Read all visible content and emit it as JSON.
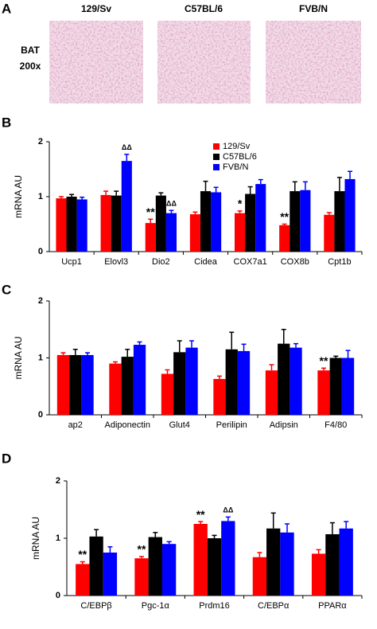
{
  "panel_a": {
    "panel": "A",
    "columns": [
      "129/Sv",
      "C57BL/6",
      "FVB/N"
    ],
    "row_label": "BAT",
    "magnification": "200x"
  },
  "chart_data": [
    {
      "type": "bar",
      "panel": "B",
      "y_label": "mRNA AU",
      "ylim": [
        0,
        2
      ],
      "yticks": [
        0,
        1,
        2
      ],
      "categories": [
        "Ucp1",
        "Elovl3",
        "Dio2",
        "Cidea",
        "COX7a1",
        "COX8b",
        "Cpt1b"
      ],
      "series": [
        {
          "name": "129/Sv",
          "color": "#ff0000",
          "values": [
            0.97,
            1.03,
            0.52,
            0.68,
            0.7,
            0.48,
            0.67
          ],
          "errors": [
            0.03,
            0.07,
            0.07,
            0.04,
            0.04,
            0.02,
            0.04
          ],
          "annotations": [
            null,
            null,
            "**",
            null,
            "*",
            "**",
            null
          ]
        },
        {
          "name": "C57BL/6",
          "color": "#000000",
          "values": [
            1.0,
            1.02,
            1.02,
            1.1,
            1.05,
            1.1,
            1.1
          ],
          "errors": [
            0.04,
            0.08,
            0.05,
            0.18,
            0.13,
            0.17,
            0.25
          ]
        },
        {
          "name": "FVB/N",
          "color": "#0000ff",
          "values": [
            0.95,
            1.65,
            0.7,
            1.08,
            1.23,
            1.12,
            1.32
          ],
          "errors": [
            0.04,
            0.12,
            0.05,
            0.09,
            0.08,
            0.15,
            0.14
          ],
          "annotations": [
            null,
            "ΔΔ",
            "ΔΔ",
            null,
            null,
            null,
            null
          ]
        }
      ]
    },
    {
      "type": "bar",
      "panel": "C",
      "y_label": "mRNA AU",
      "ylim": [
        0,
        2
      ],
      "yticks": [
        0,
        1,
        2
      ],
      "categories": [
        "ap2",
        "Adiponectin",
        "Glut4",
        "Perilipin",
        "Adipsin",
        "F4/80"
      ],
      "series": [
        {
          "color": "#ff0000",
          "values": [
            1.05,
            0.9,
            0.72,
            0.63,
            0.78,
            0.78
          ],
          "errors": [
            0.04,
            0.03,
            0.07,
            0.05,
            0.1,
            0.04
          ],
          "annotations": [
            null,
            null,
            null,
            null,
            null,
            "**"
          ]
        },
        {
          "color": "#000000",
          "values": [
            1.05,
            1.02,
            1.1,
            1.15,
            1.25,
            1.0
          ],
          "errors": [
            0.1,
            0.13,
            0.2,
            0.3,
            0.25,
            0.03
          ]
        },
        {
          "color": "#0000ff",
          "values": [
            1.05,
            1.23,
            1.18,
            1.12,
            1.18,
            1.0
          ],
          "errors": [
            0.04,
            0.05,
            0.12,
            0.12,
            0.07,
            0.13
          ]
        }
      ]
    },
    {
      "type": "bar",
      "panel": "D",
      "y_label": "mRNA AU",
      "ylim": [
        0,
        2
      ],
      "yticks": [
        0,
        1,
        2
      ],
      "categories": [
        "C/EBPβ",
        "Pgc-1α",
        "Prdm16",
        "C/EBPα",
        "PPARα"
      ],
      "series": [
        {
          "color": "#ff0000",
          "values": [
            0.55,
            0.65,
            1.25,
            0.67,
            0.73
          ],
          "errors": [
            0.04,
            0.03,
            0.04,
            0.08,
            0.07
          ],
          "annotations": [
            "**",
            "**",
            "**",
            null,
            null
          ]
        },
        {
          "color": "#000000",
          "values": [
            1.03,
            1.02,
            1.0,
            1.17,
            1.07
          ],
          "errors": [
            0.12,
            0.08,
            0.05,
            0.27,
            0.2
          ]
        },
        {
          "color": "#0000ff",
          "values": [
            0.75,
            0.9,
            1.3,
            1.1,
            1.17
          ],
          "errors": [
            0.1,
            0.04,
            0.07,
            0.15,
            0.12
          ],
          "annotations": [
            null,
            null,
            "ΔΔ",
            null,
            null
          ]
        }
      ]
    }
  ]
}
